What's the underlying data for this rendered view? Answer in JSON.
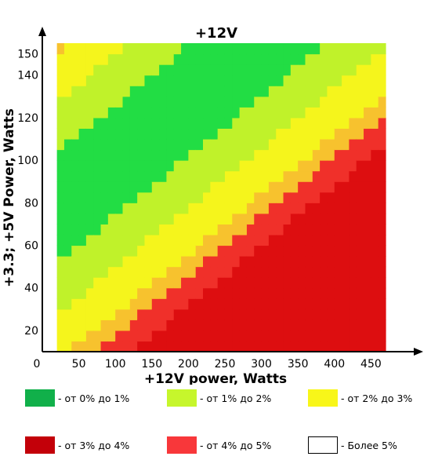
{
  "chart_data": {
    "type": "heatmap",
    "title": "+12V",
    "xlabel": "+12V power, Watts",
    "ylabel": "+3.3; +5V Power, Watts",
    "xlim": [
      0,
      470
    ],
    "ylim": [
      10,
      155
    ],
    "x_ticks": [
      "0",
      "50",
      "100",
      "150",
      "200",
      "250",
      "300",
      "350",
      "400",
      "450"
    ],
    "x_tick_values": [
      0,
      50,
      100,
      150,
      200,
      250,
      300,
      350,
      400,
      450
    ],
    "y_ticks": [
      "20",
      "40",
      "60",
      "80",
      "100",
      "120",
      "140",
      "150"
    ],
    "y_tick_values": [
      20,
      40,
      60,
      80,
      100,
      120,
      140,
      150
    ],
    "data_region": {
      "x_min": 20,
      "x_max": 470,
      "y_min": 10,
      "y_max": 155
    },
    "diagonal_band_center_offset": 72,
    "bands": [
      {
        "max_distance": 26,
        "level": "0-1",
        "color": "#22dd44"
      },
      {
        "max_distance": 50,
        "level": "1-2",
        "color": "#c0f22a"
      },
      {
        "max_distance": 72,
        "level": "2-3",
        "color": "#f5f51c"
      },
      {
        "max_distance": 82,
        "level": "2-3-orange",
        "color": "#f7c22e"
      },
      {
        "max_distance": 96,
        "level": "4-5",
        "color": "#f0302a"
      },
      {
        "max_distance": 999,
        "level": "3-4",
        "color": "#dd0e10"
      }
    ],
    "legend": [
      {
        "key": "0-1",
        "label": "- от 0% до 1%",
        "color": "#11b04a"
      },
      {
        "key": "1-2",
        "label": "- от 1% до 2%",
        "color": "#c6f62c"
      },
      {
        "key": "2-3",
        "label": "- от 2% до 3%",
        "color": "#f8f619"
      },
      {
        "key": "3-4",
        "label": "- от 3% до 4%",
        "color": "#c30009"
      },
      {
        "key": "4-5",
        "label": "- от 4% до 5%",
        "color": "#f8373a"
      },
      {
        "key": "5plus",
        "label": "- Более 5%",
        "color": "#ffffff"
      }
    ]
  }
}
